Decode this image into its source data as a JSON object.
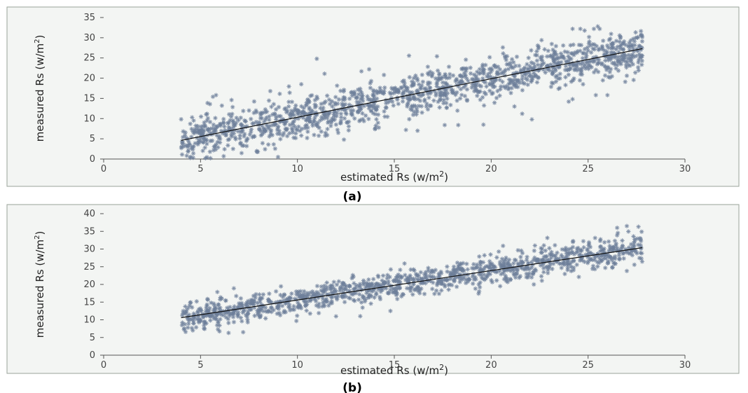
{
  "chart_data": [
    {
      "type": "scatter",
      "panel_label": "(a)",
      "xlabel": "estimated Rs (w/m",
      "xlabel_sup": "2",
      "xlabel_end": ")",
      "ylabel": "measured Rs (w/m",
      "ylabel_sup": "2",
      "ylabel_end": ")",
      "xlim": [
        0,
        30
      ],
      "ylim": [
        0,
        35
      ],
      "xticks": [
        "0",
        "5",
        "10",
        "15",
        "20",
        "25",
        "30"
      ],
      "yticks": [
        "0",
        "5",
        "10",
        "15",
        "20",
        "25",
        "30",
        "35"
      ],
      "x_range": [
        4,
        27.8
      ],
      "trend": {
        "x": [
          4,
          27.8
        ],
        "y": [
          4.6,
          27.3
        ]
      },
      "spread": 2.6,
      "n_points": 1400,
      "seed": 11,
      "outliers": [
        [
          24.2,
          32.2
        ],
        [
          24.6,
          32.2
        ],
        [
          25.3,
          32.2
        ],
        [
          25.5,
          32.8
        ],
        [
          25.6,
          32.2
        ],
        [
          22.6,
          29.4
        ],
        [
          20.6,
          27.6
        ],
        [
          17.2,
          25.4
        ],
        [
          11.0,
          24.8
        ],
        [
          13.7,
          22.2
        ],
        [
          24.0,
          14.2
        ],
        [
          24.2,
          14.8
        ],
        [
          25.4,
          15.8
        ],
        [
          26.0,
          15.8
        ],
        [
          27.0,
          20.6
        ],
        [
          18.3,
          8.4
        ],
        [
          17.6,
          8.4
        ],
        [
          15.6,
          7.2
        ],
        [
          16.2,
          7.0
        ],
        [
          14.0,
          7.4
        ],
        [
          12.4,
          4.8
        ],
        [
          10.5,
          5.2
        ],
        [
          9.0,
          0.5
        ],
        [
          5.8,
          15.8
        ],
        [
          6.6,
          14.6
        ],
        [
          8.6,
          16.8
        ],
        [
          9.6,
          16.4
        ],
        [
          10.2,
          18.5
        ],
        [
          11.4,
          21.1
        ],
        [
          21.2,
          13.0
        ],
        [
          21.6,
          11.2
        ],
        [
          19.6,
          8.5
        ],
        [
          7.5,
          12.0
        ],
        [
          22.1,
          9.8
        ]
      ],
      "title": ""
    },
    {
      "type": "scatter",
      "panel_label": "(b)",
      "xlabel": "estimated Rs (w/m",
      "xlabel_sup": "2",
      "xlabel_end": ")",
      "ylabel": "measured Rs (w/m",
      "ylabel_sup": "2",
      "ylabel_end": ")",
      "xlim": [
        0,
        30
      ],
      "ylim": [
        0,
        40
      ],
      "xticks": [
        "0",
        "5",
        "10",
        "15",
        "20",
        "25",
        "30"
      ],
      "yticks": [
        "0",
        "5",
        "10",
        "15",
        "20",
        "25",
        "30",
        "35",
        "40"
      ],
      "x_range": [
        4,
        27.8
      ],
      "trend": {
        "x": [
          4,
          27.8
        ],
        "y": [
          10.6,
          30.4
        ]
      },
      "spread": 2.0,
      "n_points": 1200,
      "seed": 23,
      "outliers": [
        [
          7.2,
          6.5
        ],
        [
          5.9,
          7.3
        ],
        [
          4.6,
          7.0
        ],
        [
          14.8,
          12.5
        ],
        [
          27.0,
          36.5
        ],
        [
          27.6,
          36.3
        ],
        [
          26.5,
          36.0
        ],
        [
          22.2,
          20.0
        ],
        [
          27.0,
          23.8
        ],
        [
          4.8,
          15.2
        ],
        [
          6.1,
          16.0
        ]
      ],
      "title": ""
    }
  ]
}
